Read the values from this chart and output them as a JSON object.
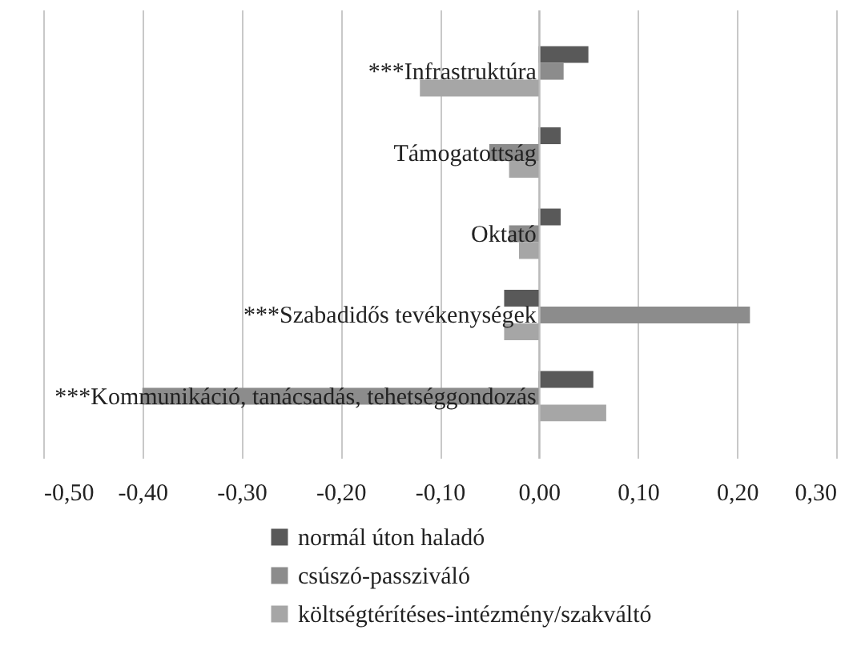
{
  "chart_data": {
    "type": "bar",
    "orientation": "horizontal",
    "categories": [
      "***Infrastruktúra",
      "Támogatottság",
      "Oktató",
      "***Szabadidős tevékenységek",
      "***Kommunikáció, tanácsadás, tehetséggondozás"
    ],
    "series": [
      {
        "name": "normál úton haladó",
        "color": "#595959",
        "values": [
          0.05,
          0.022,
          0.022,
          -0.035,
          0.055
        ]
      },
      {
        "name": "csúszó-passziváló",
        "color": "#8c8c8c",
        "values": [
          0.025,
          -0.05,
          -0.03,
          0.213,
          -0.4
        ]
      },
      {
        "name": "költségtérítéses-intézmény/szakváltó",
        "color": "#a6a6a6",
        "values": [
          -0.12,
          -0.03,
          -0.02,
          -0.035,
          0.068
        ]
      }
    ],
    "xlim": [
      -0.5,
      0.3
    ],
    "xticks": [
      {
        "value": -0.5,
        "label": "-0,50"
      },
      {
        "value": -0.4,
        "label": "-0,40"
      },
      {
        "value": -0.3,
        "label": "-0,30"
      },
      {
        "value": -0.2,
        "label": "-0,20"
      },
      {
        "value": -0.1,
        "label": "-0,10"
      },
      {
        "value": 0,
        "label": "0,00"
      },
      {
        "value": 0.1,
        "label": "0,10"
      },
      {
        "value": 0.2,
        "label": "0,20"
      },
      {
        "value": 0.3,
        "label": "0,30"
      }
    ],
    "grid": "x",
    "legend": "bottom"
  }
}
